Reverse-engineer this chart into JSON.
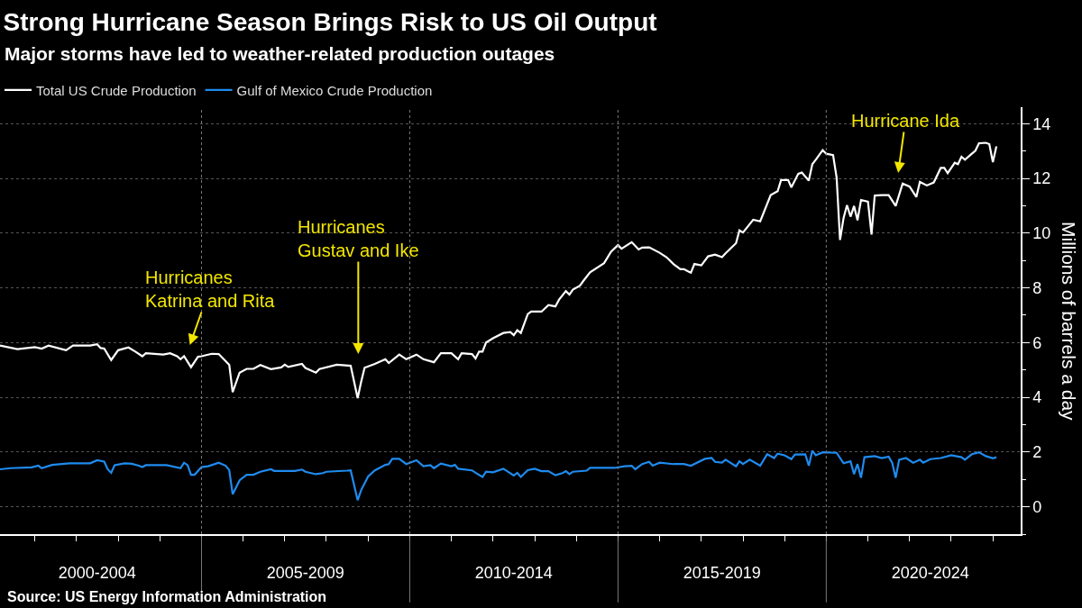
{
  "chart_data": {
    "type": "line",
    "title": "Strong Hurricane Season Brings Risk to US Oil Output",
    "subtitle": "Major storms have led to weather-related production outages",
    "ylabel": "Millions of barrels a day",
    "series": [
      {
        "name": "Total US Crude Production",
        "color": "#ffffff",
        "x": [
          "2000-03",
          "2000-08",
          "2001-01",
          "2001-03",
          "2001-05",
          "2001-10",
          "2001-12",
          "2002-05",
          "2002-07",
          "2002-08",
          "2002-09",
          "2002-11",
          "2003-01",
          "2003-04",
          "2003-06",
          "2003-08",
          "2003-09",
          "2004-02",
          "2004-04",
          "2004-06",
          "2004-07",
          "2004-08",
          "2004-10",
          "2004-12",
          "2005-01",
          "2005-04",
          "2005-06",
          "2005-09",
          "2005-10",
          "2005-12",
          "2006-02",
          "2006-04",
          "2006-06",
          "2006-09",
          "2006-12",
          "2007-01",
          "2007-02",
          "2007-06",
          "2007-07",
          "2007-10",
          "2007-11",
          "2008-04",
          "2008-08",
          "2008-10",
          "2008-11",
          "2008-12",
          "2009-03",
          "2009-06",
          "2009-07",
          "2009-10",
          "2009-12",
          "2010-03",
          "2010-05",
          "2010-08",
          "2010-10",
          "2011-01",
          "2011-03",
          "2011-04",
          "2011-07",
          "2011-08",
          "2011-09",
          "2011-10",
          "2011-11",
          "2012-01",
          "2012-04",
          "2012-06",
          "2012-07",
          "2012-08",
          "2012-09",
          "2012-11",
          "2012-12",
          "2013-03",
          "2013-05",
          "2013-07",
          "2013-08",
          "2013-10",
          "2013-11",
          "2013-12",
          "2014-02",
          "2014-03",
          "2014-05",
          "2014-09",
          "2014-11",
          "2015-01",
          "2015-02",
          "2015-05",
          "2015-07",
          "2015-08",
          "2015-10",
          "2016-01",
          "2016-03",
          "2016-05",
          "2016-07",
          "2016-08",
          "2016-10",
          "2016-11",
          "2017-01",
          "2017-03",
          "2017-05",
          "2017-07",
          "2017-08",
          "2017-11",
          "2017-12",
          "2018-01",
          "2018-04",
          "2018-06",
          "2018-09",
          "2018-11",
          "2018-12",
          "2019-02",
          "2019-03",
          "2019-05",
          "2019-06",
          "2019-08",
          "2019-09",
          "2019-10",
          "2019-12",
          "2020-01",
          "2020-03",
          "2020-04",
          "2020-05",
          "2020-06",
          "2020-07",
          "2020-08",
          "2020-09",
          "2020-10",
          "2020-11",
          "2021-01",
          "2021-02",
          "2021-03",
          "2021-05",
          "2021-07",
          "2021-09",
          "2021-11",
          "2022-01",
          "2022-03",
          "2022-04",
          "2022-06",
          "2022-08",
          "2022-10",
          "2022-11",
          "2022-12",
          "2023-02",
          "2023-03",
          "2023-04",
          "2023-05",
          "2023-07",
          "2023-08",
          "2023-09",
          "2023-11",
          "2023-12",
          "2024-01",
          "2024-02"
        ],
        "values": [
          5.89,
          5.76,
          5.83,
          5.78,
          5.89,
          5.72,
          5.89,
          5.89,
          5.94,
          5.8,
          5.78,
          5.36,
          5.72,
          5.82,
          5.67,
          5.5,
          5.61,
          5.56,
          5.61,
          5.5,
          5.39,
          5.5,
          5.1,
          5.48,
          5.5,
          5.59,
          5.58,
          5.19,
          4.19,
          4.9,
          5.04,
          5.04,
          5.18,
          5.03,
          5.09,
          5.19,
          5.11,
          5.22,
          5.07,
          4.9,
          5.03,
          5.19,
          5.15,
          3.97,
          4.57,
          5.08,
          5.22,
          5.39,
          5.25,
          5.56,
          5.39,
          5.56,
          5.39,
          5.28,
          5.61,
          5.61,
          5.39,
          5.61,
          5.58,
          5.42,
          5.67,
          5.67,
          6.0,
          6.16,
          6.35,
          6.38,
          6.27,
          6.45,
          6.35,
          7.04,
          7.13,
          7.13,
          7.37,
          7.32,
          7.56,
          7.88,
          7.75,
          7.93,
          8.08,
          8.24,
          8.57,
          8.9,
          9.32,
          9.56,
          9.43,
          9.67,
          9.4,
          9.47,
          9.48,
          9.28,
          9.12,
          8.87,
          8.68,
          8.68,
          8.55,
          8.87,
          8.82,
          9.15,
          9.21,
          9.12,
          9.26,
          9.63,
          10.1,
          10.02,
          10.49,
          10.43,
          11.39,
          11.53,
          11.94,
          11.94,
          11.67,
          12.17,
          12.21,
          11.92,
          12.52,
          12.68,
          13.03,
          12.9,
          12.85,
          12.03,
          9.75,
          10.55,
          11.02,
          10.6,
          10.99,
          10.47,
          11.21,
          11.15,
          9.95,
          11.37,
          11.39,
          11.39,
          10.99,
          11.81,
          11.7,
          11.32,
          11.87,
          11.74,
          11.85,
          12.38,
          12.38,
          12.19,
          12.57,
          12.52,
          12.79,
          12.68,
          12.9,
          13.01,
          13.28,
          13.3,
          13.25,
          12.59,
          13.17
        ]
      },
      {
        "name": "Gulf of Mexico Crude Production",
        "color": "#1f8bef",
        "x": [
          "2000-03",
          "2000-06",
          "2000-12",
          "2001-02",
          "2001-03",
          "2001-06",
          "2001-11",
          "2002-05",
          "2002-07",
          "2002-09",
          "2002-10",
          "2002-11",
          "2002-12",
          "2003-03",
          "2003-05",
          "2003-07",
          "2003-08",
          "2003-09",
          "2004-03",
          "2004-07",
          "2004-08",
          "2004-09",
          "2004-10",
          "2004-11",
          "2005-01",
          "2005-03",
          "2005-06",
          "2005-08",
          "2005-09",
          "2005-10",
          "2005-12",
          "2006-02",
          "2006-04",
          "2006-06",
          "2006-09",
          "2006-10",
          "2007-04",
          "2007-06",
          "2007-07",
          "2007-10",
          "2007-12",
          "2008-01",
          "2008-07",
          "2008-08",
          "2008-10",
          "2008-11",
          "2009-01",
          "2009-03",
          "2009-06",
          "2009-07",
          "2009-08",
          "2009-10",
          "2009-12",
          "2010-03",
          "2010-05",
          "2010-07",
          "2010-08",
          "2010-10",
          "2011-01",
          "2011-02",
          "2011-03",
          "2011-07",
          "2011-08",
          "2011-10",
          "2011-11",
          "2012-01",
          "2012-04",
          "2012-07",
          "2012-08",
          "2012-09",
          "2012-11",
          "2013-01",
          "2013-03",
          "2013-05",
          "2013-07",
          "2013-09",
          "2013-10",
          "2013-11",
          "2013-12",
          "2014-04",
          "2014-05",
          "2014-12",
          "2015-03",
          "2015-05",
          "2015-06",
          "2015-08",
          "2015-10",
          "2015-11",
          "2016-01",
          "2016-05",
          "2016-08",
          "2016-10",
          "2017-02",
          "2017-04",
          "2017-05",
          "2017-07",
          "2017-08",
          "2017-11",
          "2017-12",
          "2018-01",
          "2018-03",
          "2018-06",
          "2018-08",
          "2018-10",
          "2018-11",
          "2019-01",
          "2019-03",
          "2019-04",
          "2019-07",
          "2019-08",
          "2019-09",
          "2019-10",
          "2019-12",
          "2020-04",
          "2020-06",
          "2020-08",
          "2020-09",
          "2020-10",
          "2020-11",
          "2020-12",
          "2021-03",
          "2021-05",
          "2021-07",
          "2021-08",
          "2021-09",
          "2021-10",
          "2021-12",
          "2022-02",
          "2022-04",
          "2022-05",
          "2022-07",
          "2022-10",
          "2023-01",
          "2023-04",
          "2023-05",
          "2023-07",
          "2023-09",
          "2023-11",
          "2024-01",
          "2024-02"
        ],
        "values": [
          1.37,
          1.41,
          1.44,
          1.5,
          1.41,
          1.53,
          1.59,
          1.59,
          1.7,
          1.65,
          1.37,
          1.24,
          1.52,
          1.59,
          1.57,
          1.5,
          1.45,
          1.52,
          1.52,
          1.41,
          1.61,
          1.52,
          1.17,
          1.17,
          1.45,
          1.48,
          1.61,
          1.5,
          1.34,
          0.46,
          0.97,
          1.17,
          1.17,
          1.28,
          1.37,
          1.31,
          1.31,
          1.36,
          1.28,
          1.19,
          1.23,
          1.28,
          1.32,
          1.33,
          0.24,
          0.61,
          1.11,
          1.33,
          1.53,
          1.56,
          1.75,
          1.75,
          1.56,
          1.7,
          1.48,
          1.52,
          1.41,
          1.58,
          1.48,
          1.53,
          1.39,
          1.33,
          1.24,
          1.09,
          1.28,
          1.26,
          1.39,
          1.14,
          1.24,
          1.09,
          1.34,
          1.39,
          1.3,
          1.3,
          1.15,
          1.23,
          1.3,
          1.19,
          1.28,
          1.32,
          1.42,
          1.42,
          1.48,
          1.5,
          1.37,
          1.56,
          1.64,
          1.5,
          1.61,
          1.56,
          1.56,
          1.5,
          1.75,
          1.78,
          1.64,
          1.61,
          1.72,
          1.48,
          1.66,
          1.56,
          1.72,
          1.5,
          1.92,
          1.78,
          1.94,
          1.88,
          1.74,
          1.91,
          1.92,
          1.5,
          2.05,
          1.88,
          1.99,
          1.97,
          1.59,
          1.66,
          1.19,
          1.56,
          1.06,
          1.81,
          1.85,
          1.78,
          1.83,
          1.61,
          1.06,
          1.72,
          1.78,
          1.61,
          1.72,
          1.61,
          1.74,
          1.78,
          1.88,
          1.81,
          1.72,
          1.92,
          1.99,
          1.85,
          1.77,
          1.81
        ]
      }
    ],
    "xlim": [
      "2000-03",
      "2024-09"
    ],
    "xticks": [
      {
        "value": "2001-01",
        "label": null
      },
      {
        "value": "2002-01",
        "label": null
      },
      {
        "value": "2003-01",
        "label": null
      },
      {
        "value": "2004-01",
        "label": null
      },
      {
        "value": "2005-01",
        "label": null
      },
      {
        "value": "2006-01",
        "label": null
      },
      {
        "value": "2007-01",
        "label": null
      },
      {
        "value": "2008-01",
        "label": null
      },
      {
        "value": "2009-01",
        "label": null
      },
      {
        "value": "2010-01",
        "label": null
      },
      {
        "value": "2011-01",
        "label": null
      },
      {
        "value": "2012-01",
        "label": null
      },
      {
        "value": "2013-01",
        "label": null
      },
      {
        "value": "2014-01",
        "label": null
      },
      {
        "value": "2015-01",
        "label": null
      },
      {
        "value": "2016-01",
        "label": null
      },
      {
        "value": "2017-01",
        "label": null
      },
      {
        "value": "2018-01",
        "label": null
      },
      {
        "value": "2019-01",
        "label": null
      },
      {
        "value": "2020-01",
        "label": null
      },
      {
        "value": "2021-01",
        "label": null
      },
      {
        "value": "2022-01",
        "label": null
      },
      {
        "value": "2023-01",
        "label": null
      },
      {
        "value": "2024-01",
        "label": null
      },
      {
        "value": "2002-07",
        "label": "2000-2004"
      },
      {
        "value": "2007-07",
        "label": "2005-2009"
      },
      {
        "value": "2012-07",
        "label": "2010-2014"
      },
      {
        "value": "2017-07",
        "label": "2015-2019"
      },
      {
        "value": "2022-07",
        "label": "2020-2024"
      }
    ],
    "ylim": [
      -1,
      14.6
    ],
    "yticks": [
      0,
      2,
      4,
      6,
      8,
      10,
      12,
      14,
      {
        "value": -1,
        "label": null
      },
      {
        "value": 1,
        "label": null
      },
      {
        "value": 3,
        "label": null
      },
      {
        "value": 5,
        "label": null
      },
      {
        "value": 7,
        "label": null
      },
      {
        "value": 9,
        "label": null
      },
      {
        "value": 11,
        "label": null
      },
      {
        "value": 13,
        "label": null
      }
    ],
    "ref_lines": [
      {
        "axis": "x",
        "value": "2005-01",
        "color": "#7a7a7a",
        "line_style": "dotted"
      },
      {
        "axis": "x",
        "value": "2010-01",
        "color": "#7a7a7a",
        "line_style": "dotted"
      },
      {
        "axis": "x",
        "value": "2015-01",
        "color": "#7a7a7a",
        "line_style": "dotted"
      },
      {
        "axis": "x",
        "value": "2020-01",
        "color": "#7a7a7a",
        "line_style": "dotted"
      }
    ],
    "grid": "y",
    "legend": "top left",
    "annotations": [
      "Hurricanes\nKatrina and Rita",
      "Hurricanes\nGustav and Ike",
      "Hurricane Ida",
      "Source: US Energy Information Administration"
    ]
  }
}
